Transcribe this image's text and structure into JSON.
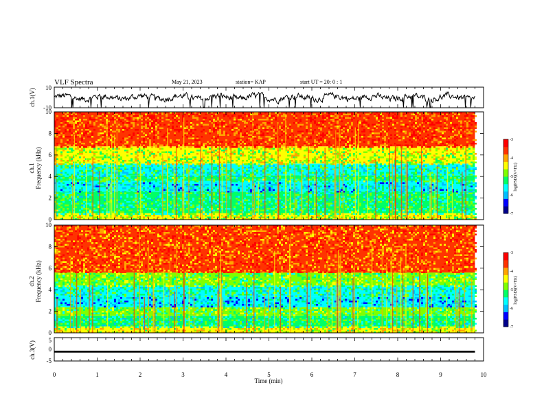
{
  "header": {
    "title": "VLF Spectra",
    "date": "May 21, 2023",
    "station": "station= KAP",
    "start": "start  UT =   20: 0  : 1"
  },
  "chart_data": [
    {
      "type": "line",
      "name": "ch1-waveform",
      "ylabel": "ch.1(V)",
      "ylim": [
        -10,
        10
      ],
      "yticks": [
        "10",
        "-10"
      ],
      "xlim": [
        0,
        10
      ],
      "x_range_data": [
        0,
        9.8
      ],
      "typical_amplitude": 3
    },
    {
      "type": "heatmap",
      "name": "ch1-spectrogram",
      "ylabel_lines": [
        "ch.1",
        "Frequency (kHz)"
      ],
      "ylim": [
        0,
        10
      ],
      "yticks": [
        "0",
        "2",
        "4",
        "6",
        "8",
        "10"
      ],
      "xlim": [
        0,
        10
      ],
      "x_range_data": [
        0,
        9.8
      ],
      "colorbar": {
        "label": "log(PSD)(V²/Hz)",
        "range": [
          -7,
          -3
        ],
        "ticks": [
          "-3",
          "-4",
          "-5",
          "-6",
          "-7"
        ]
      },
      "bands": [
        {
          "f0": 0,
          "f1": 0.6,
          "level": -4.6
        },
        {
          "f0": 0.6,
          "f1": 1.4,
          "level": -5.2
        },
        {
          "f0": 1.4,
          "f1": 2.6,
          "level": -5.3
        },
        {
          "f0": 2.6,
          "f1": 3.6,
          "level": -5.7
        },
        {
          "f0": 3.6,
          "f1": 4.1,
          "level": -5.2
        },
        {
          "f0": 4.1,
          "f1": 5.2,
          "level": -5.4
        },
        {
          "f0": 5.2,
          "f1": 6.8,
          "level": -4.6
        },
        {
          "f0": 6.8,
          "f1": 10,
          "level": -3.6
        }
      ]
    },
    {
      "type": "heatmap",
      "name": "ch2-spectrogram",
      "ylabel_lines": [
        "ch.2",
        "Frequency (kHz)"
      ],
      "ylim": [
        0,
        10
      ],
      "yticks": [
        "0",
        "2",
        "4",
        "6",
        "8",
        "10"
      ],
      "xlim": [
        0,
        10
      ],
      "x_range_data": [
        0,
        9.8
      ],
      "colorbar": {
        "label": "log(PSD)(V²/Hz)",
        "range": [
          -7,
          -3
        ],
        "ticks": [
          "-3",
          "-4",
          "-5",
          "-6",
          "-7"
        ]
      },
      "bands": [
        {
          "f0": 0,
          "f1": 0.6,
          "level": -4.5
        },
        {
          "f0": 0.6,
          "f1": 1.6,
          "level": -5.3
        },
        {
          "f0": 1.6,
          "f1": 2.4,
          "level": -5.0
        },
        {
          "f0": 2.4,
          "f1": 3.4,
          "level": -5.8
        },
        {
          "f0": 3.4,
          "f1": 4.4,
          "level": -5.4
        },
        {
          "f0": 4.4,
          "f1": 5.6,
          "level": -4.9
        },
        {
          "f0": 5.6,
          "f1": 10,
          "level": -3.7
        }
      ]
    },
    {
      "type": "line",
      "name": "ch3-waveform",
      "ylabel": "ch.3(V)",
      "ylim": [
        -5,
        5
      ],
      "yticks": [
        "5",
        "0",
        "-5"
      ],
      "xlim": [
        0,
        10
      ],
      "x_range_data": [
        0,
        9.8
      ],
      "level": -1,
      "band_halfwidth": 0.4
    }
  ],
  "xaxis": {
    "label": "Time (min)",
    "ticks": [
      "0",
      "1",
      "2",
      "3",
      "4",
      "5",
      "6",
      "7",
      "8",
      "9",
      "10"
    ]
  },
  "colors": {
    "axis": "#000000",
    "colormap": [
      "#00008b",
      "#0000ff",
      "#00bfff",
      "#00ffff",
      "#00ff66",
      "#7fff00",
      "#ffff00",
      "#ffa500",
      "#ff3300",
      "#ff0000"
    ]
  }
}
